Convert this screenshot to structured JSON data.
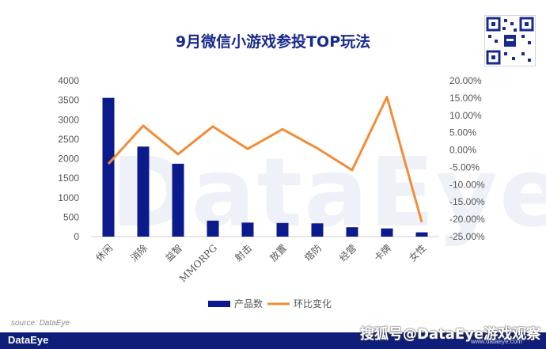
{
  "header": {
    "title": "9月微信小游戏参投TOP玩法"
  },
  "watermark_text": "DataEye",
  "source": "source: DataEye",
  "footer": {
    "brand": "DataEye",
    "overlay": "搜狐号@DataEye游戏观察",
    "url": "www.dataeye.com"
  },
  "legend": {
    "bar_label": "产品数",
    "line_label": "环比变化"
  },
  "chart_data": {
    "type": "bar",
    "title": "9月微信小游戏参投TOP玩法",
    "categories": [
      "休闲",
      "消除",
      "益智",
      "MMORPG",
      "射击",
      "放置",
      "塔防",
      "经营",
      "卡牌",
      "女性"
    ],
    "series": [
      {
        "name": "产品数",
        "type": "bar",
        "axis": "left",
        "color": "#0b1a8c",
        "values": [
          3560,
          2310,
          1870,
          410,
          360,
          350,
          340,
          240,
          210,
          110
        ]
      },
      {
        "name": "环比变化",
        "type": "line",
        "axis": "right",
        "color": "#f28c38",
        "values": [
          -4.0,
          7.0,
          -1.2,
          6.8,
          0.3,
          6.0,
          0.5,
          -5.8,
          15.3,
          -20.8
        ]
      }
    ],
    "y_left": {
      "min": 0,
      "max": 4000,
      "step": 500,
      "ticks": [
        "0",
        "500",
        "1000",
        "1500",
        "2000",
        "2500",
        "3000",
        "3500",
        "4000"
      ]
    },
    "y_right": {
      "min": -25,
      "max": 20,
      "step": 5,
      "ticks": [
        "-25.00%",
        "-20.00%",
        "-15.00%",
        "-10.00%",
        "-5.00%",
        "0.00%",
        "5.00%",
        "10.00%",
        "15.00%",
        "20.00%"
      ]
    },
    "grid": false,
    "legend_position": "bottom"
  }
}
